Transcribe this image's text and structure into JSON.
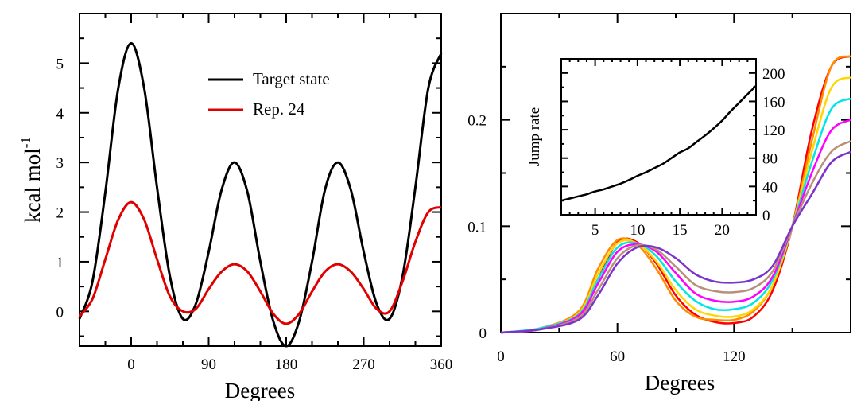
{
  "chart_data": [
    {
      "type": "line",
      "xlabel": "Degrees",
      "ylabel": "kcal mol",
      "ylabel_superscript": "-1",
      "xlim": [
        -60,
        360
      ],
      "ylim": [
        -0.7,
        6
      ],
      "xticks": [
        0,
        90,
        180,
        270,
        360
      ],
      "yticks": [
        0,
        1,
        2,
        3,
        4,
        5
      ],
      "legend": {
        "position": "top-right",
        "entries": [
          "Target state",
          "Rep. 24"
        ]
      },
      "grid": false,
      "series": [
        {
          "name": "Target state",
          "color": "#000000",
          "x": [
            -60,
            -45,
            -30,
            -15,
            0,
            15,
            30,
            45,
            60,
            75,
            90,
            105,
            120,
            135,
            150,
            165,
            180,
            195,
            210,
            225,
            240,
            255,
            270,
            285,
            300,
            315,
            330,
            345,
            360
          ],
          "y": [
            -0.15,
            0.6,
            2.4,
            4.5,
            5.4,
            4.5,
            2.5,
            0.7,
            -0.15,
            0.15,
            1.2,
            2.45,
            3.0,
            2.4,
            1.0,
            -0.2,
            -0.7,
            -0.2,
            1.0,
            2.45,
            3.0,
            2.45,
            1.2,
            0.15,
            -0.15,
            0.7,
            2.5,
            4.5,
            5.2
          ]
        },
        {
          "name": "Rep. 24",
          "color": "#e00000",
          "x": [
            -60,
            -45,
            -30,
            -15,
            0,
            15,
            30,
            45,
            60,
            75,
            90,
            105,
            120,
            135,
            150,
            165,
            180,
            195,
            210,
            225,
            240,
            255,
            270,
            285,
            300,
            315,
            330,
            345,
            360
          ],
          "y": [
            -0.1,
            0.25,
            1.05,
            1.85,
            2.2,
            1.85,
            1.05,
            0.3,
            0.0,
            0.05,
            0.45,
            0.8,
            0.95,
            0.8,
            0.4,
            -0.05,
            -0.25,
            -0.05,
            0.4,
            0.8,
            0.95,
            0.8,
            0.45,
            0.05,
            0.0,
            0.6,
            1.4,
            2.0,
            2.1
          ]
        }
      ]
    },
    {
      "type": "line",
      "xlabel": "Degrees",
      "ylabel": "",
      "xlim": [
        0,
        180
      ],
      "ylim": [
        0,
        0.3
      ],
      "xticks": [
        0,
        60,
        120
      ],
      "yticks": [
        0,
        0.1,
        0.2
      ],
      "grid": false,
      "series": [
        {
          "color": "#ff0000",
          "x": [
            0,
            20,
            40,
            50,
            60,
            70,
            80,
            90,
            100,
            110,
            120,
            130,
            140,
            150,
            160,
            170,
            180
          ],
          "y": [
            0,
            0.003,
            0.015,
            0.05,
            0.085,
            0.085,
            0.065,
            0.035,
            0.017,
            0.01,
            0.009,
            0.015,
            0.04,
            0.1,
            0.19,
            0.25,
            0.26
          ]
        },
        {
          "color": "#ff8c00",
          "x": [
            0,
            20,
            40,
            50,
            60,
            70,
            80,
            90,
            100,
            110,
            120,
            130,
            140,
            150,
            160,
            170,
            180
          ],
          "y": [
            0,
            0.004,
            0.02,
            0.06,
            0.087,
            0.083,
            0.06,
            0.03,
            0.015,
            0.012,
            0.012,
            0.02,
            0.045,
            0.1,
            0.18,
            0.25,
            0.26
          ]
        },
        {
          "color": "#ffd700",
          "x": [
            0,
            20,
            40,
            50,
            60,
            70,
            80,
            90,
            100,
            110,
            120,
            130,
            140,
            150,
            160,
            170,
            180
          ],
          "y": [
            0,
            0.004,
            0.018,
            0.055,
            0.084,
            0.084,
            0.067,
            0.04,
            0.022,
            0.016,
            0.015,
            0.022,
            0.045,
            0.1,
            0.17,
            0.23,
            0.24
          ]
        },
        {
          "color": "#00e5e5",
          "x": [
            0,
            20,
            40,
            50,
            60,
            70,
            80,
            90,
            100,
            110,
            120,
            130,
            140,
            150,
            160,
            170,
            180
          ],
          "y": [
            0,
            0.004,
            0.017,
            0.05,
            0.08,
            0.084,
            0.072,
            0.048,
            0.03,
            0.022,
            0.022,
            0.028,
            0.05,
            0.1,
            0.16,
            0.21,
            0.22
          ]
        },
        {
          "color": "#ff00ff",
          "x": [
            0,
            20,
            40,
            50,
            60,
            70,
            80,
            90,
            100,
            110,
            120,
            130,
            140,
            150,
            160,
            170,
            180
          ],
          "y": [
            0,
            0.003,
            0.016,
            0.046,
            0.076,
            0.083,
            0.076,
            0.056,
            0.037,
            0.03,
            0.029,
            0.034,
            0.053,
            0.1,
            0.15,
            0.19,
            0.2
          ]
        },
        {
          "color": "#b8907a",
          "x": [
            0,
            20,
            40,
            50,
            60,
            70,
            80,
            90,
            100,
            110,
            120,
            130,
            140,
            150,
            160,
            170,
            180
          ],
          "y": [
            0,
            0.003,
            0.014,
            0.04,
            0.07,
            0.082,
            0.078,
            0.062,
            0.045,
            0.039,
            0.038,
            0.042,
            0.058,
            0.1,
            0.14,
            0.17,
            0.18
          ]
        },
        {
          "color": "#7a33cc",
          "x": [
            0,
            20,
            40,
            50,
            60,
            70,
            80,
            90,
            100,
            110,
            120,
            130,
            140,
            150,
            160,
            170,
            180
          ],
          "y": [
            0,
            0.003,
            0.012,
            0.035,
            0.065,
            0.08,
            0.08,
            0.07,
            0.055,
            0.048,
            0.047,
            0.05,
            0.063,
            0.1,
            0.13,
            0.16,
            0.17
          ]
        }
      ],
      "inset": {
        "ylabel": "Jump rate",
        "xlim": [
          1,
          24
        ],
        "ylim": [
          0,
          220
        ],
        "xticks": [
          5,
          10,
          15,
          20
        ],
        "yticks": [
          0,
          40,
          80,
          120,
          160,
          200
        ],
        "series": [
          {
            "color": "#000000",
            "x": [
              1,
              2,
              3,
              4,
              5,
              6,
              7,
              8,
              9,
              10,
              11,
              12,
              13,
              14,
              15,
              16,
              17,
              18,
              19,
              20,
              21,
              22,
              23,
              24
            ],
            "y": [
              20,
              23,
              26,
              29,
              33,
              36,
              40,
              44,
              49,
              55,
              60,
              66,
              72,
              80,
              88,
              94,
              103,
              112,
              122,
              133,
              146,
              158,
              170,
              182
            ]
          }
        ]
      }
    }
  ]
}
